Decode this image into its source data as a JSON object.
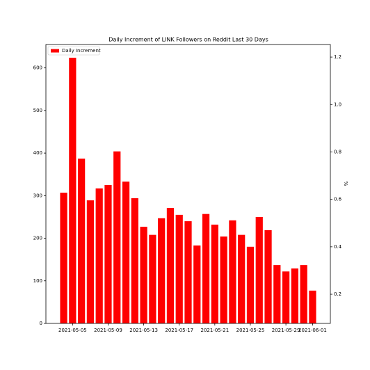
{
  "chart_data": {
    "type": "bar",
    "title": "Daily Increment of LINK Followers on Reddit Last 30 Days",
    "x": [
      "2021-05-04",
      "2021-05-05",
      "2021-05-06",
      "2021-05-07",
      "2021-05-08",
      "2021-05-09",
      "2021-05-10",
      "2021-05-11",
      "2021-05-12",
      "2021-05-13",
      "2021-05-14",
      "2021-05-15",
      "2021-05-16",
      "2021-05-17",
      "2021-05-18",
      "2021-05-19",
      "2021-05-20",
      "2021-05-21",
      "2021-05-22",
      "2021-05-23",
      "2021-05-24",
      "2021-05-25",
      "2021-05-26",
      "2021-05-27",
      "2021-05-28",
      "2021-05-29",
      "2021-05-30",
      "2021-05-31",
      "2021-06-01"
    ],
    "xlim": [
      "2021-05-02",
      "2021-06-03"
    ],
    "xticks": [
      "2021-05-05",
      "2021-05-09",
      "2021-05-13",
      "2021-05-17",
      "2021-05-21",
      "2021-05-25",
      "2021-05-29",
      "2021-06-01"
    ],
    "series": [
      {
        "name": "Daily Increment",
        "color": "#ff0000",
        "values": [
          307,
          624,
          387,
          289,
          317,
          325,
          404,
          333,
          294,
          227,
          208,
          247,
          271,
          255,
          240,
          183,
          257,
          232,
          204,
          242,
          208,
          180,
          250,
          219,
          137,
          122,
          129,
          137,
          77
        ]
      }
    ],
    "ylim": [
      0,
      655
    ],
    "yticks": [
      0,
      100,
      200,
      300,
      400,
      500,
      600
    ],
    "y2label": "%",
    "y2lim": [
      0.077,
      1.253
    ],
    "y2ticks": [
      0.2,
      0.4,
      0.6,
      0.8,
      {
        "value": 1.0,
        "label": "1.0"
      },
      1.2
    ],
    "legend": "upper left"
  }
}
